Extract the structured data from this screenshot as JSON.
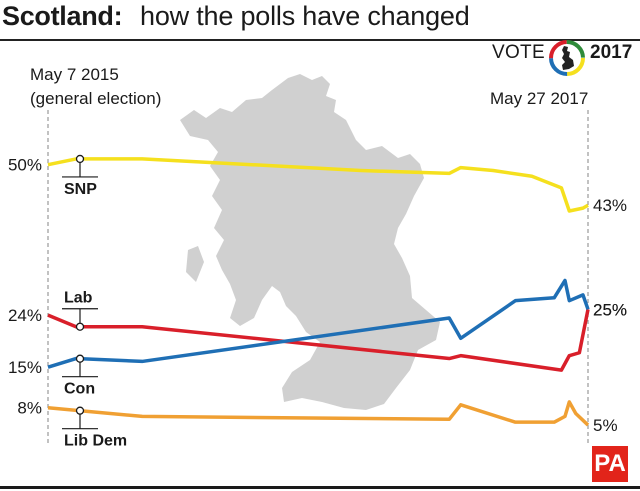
{
  "title": {
    "bold": "Scotland:",
    "rest": "how the polls have changed"
  },
  "badge": {
    "vote": "VOTE",
    "year": "2017"
  },
  "colors": {
    "SNP": "#f5e01e",
    "Lab": "#d91f2a",
    "Con": "#1f6fb5",
    "Lib Dem": "#f0a033",
    "map": "#d0d0d0"
  },
  "chart_data": {
    "type": "line",
    "title": "Scotland: how the polls have changed",
    "x_start_label": "May 7 2015 (general election)",
    "x_start_label_lines": [
      "May 7 2015",
      "(general election)"
    ],
    "x_end_label": "May 27 2017",
    "x_range": [
      "2015-05-07",
      "2017-05-27"
    ],
    "y_range": [
      0,
      56
    ],
    "grid": false,
    "legend": "inline labels",
    "series": [
      {
        "name": "SNP",
        "color": "#f5e01e",
        "start_label": "50%",
        "end_label": "43%",
        "points": [
          [
            "2015-05-07",
            50
          ],
          [
            "2015-06-15",
            51
          ],
          [
            "2015-09-15",
            51
          ],
          [
            "2016-02-15",
            50
          ],
          [
            "2016-07-15",
            49
          ],
          [
            "2016-11-15",
            48.5
          ],
          [
            "2016-12-01",
            49.5
          ],
          [
            "2017-01-15",
            49
          ],
          [
            "2017-03-10",
            48
          ],
          [
            "2017-04-20",
            46
          ],
          [
            "2017-05-01",
            42
          ],
          [
            "2017-05-20",
            42.5
          ],
          [
            "2017-05-27",
            43
          ]
        ]
      },
      {
        "name": "Lab",
        "color": "#d91f2a",
        "start_label": "24%",
        "end_label": "25%",
        "points": [
          [
            "2015-05-07",
            24
          ],
          [
            "2015-06-15",
            22
          ],
          [
            "2015-09-15",
            22
          ],
          [
            "2016-11-15",
            16.5
          ],
          [
            "2016-12-01",
            17
          ],
          [
            "2017-04-20",
            14.5
          ],
          [
            "2017-05-01",
            17
          ],
          [
            "2017-05-15",
            17.5
          ],
          [
            "2017-05-27",
            25
          ]
        ]
      },
      {
        "name": "Con",
        "color": "#1f6fb5",
        "start_label": "15%",
        "end_label": "25%",
        "points": [
          [
            "2015-05-07",
            15
          ],
          [
            "2015-06-15",
            16.5
          ],
          [
            "2015-09-15",
            16
          ],
          [
            "2016-11-15",
            23.5
          ],
          [
            "2016-12-01",
            20
          ],
          [
            "2017-02-15",
            26.5
          ],
          [
            "2017-04-10",
            27
          ],
          [
            "2017-04-25",
            30
          ],
          [
            "2017-05-01",
            26.5
          ],
          [
            "2017-05-20",
            27.5
          ],
          [
            "2017-05-27",
            25
          ]
        ]
      },
      {
        "name": "Lib Dem",
        "color": "#f0a033",
        "start_label": "8%",
        "end_label": "5%",
        "points": [
          [
            "2015-05-07",
            8
          ],
          [
            "2015-09-15",
            6.5
          ],
          [
            "2016-11-15",
            6
          ],
          [
            "2016-12-01",
            8.5
          ],
          [
            "2017-02-15",
            5.5
          ],
          [
            "2017-04-10",
            5.5
          ],
          [
            "2017-04-25",
            6.5
          ],
          [
            "2017-05-01",
            9
          ],
          [
            "2017-05-10",
            7
          ],
          [
            "2017-05-27",
            5
          ]
        ]
      }
    ]
  },
  "footer": {
    "logo": "PA"
  }
}
